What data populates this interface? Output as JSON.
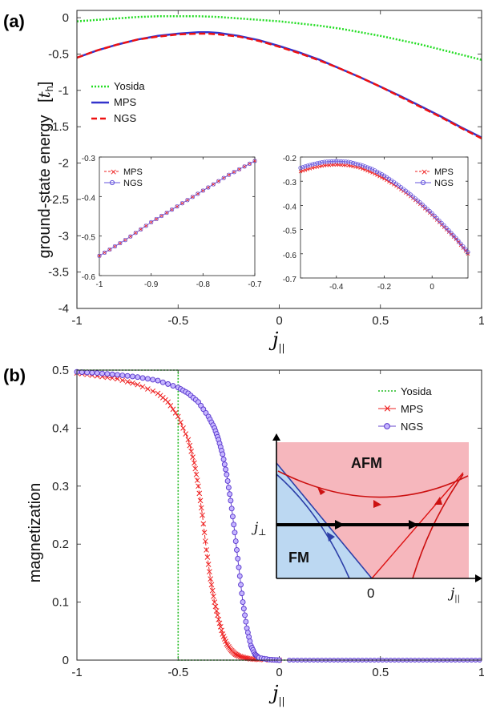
{
  "chart_data": [
    {
      "type": "line",
      "panel_label": "(a)",
      "ylabel": "ground-state energy",
      "yunit_prefix": "[",
      "yunit_symbol": "t",
      "yunit_sub": "h",
      "yunit_suffix": "]",
      "xlabel_symbol": "j",
      "xlabel_sub": "||",
      "xlim": [
        -1,
        1
      ],
      "ylim": [
        -4,
        0.1
      ],
      "xticks": [
        "-1",
        "-0.5",
        "0",
        "0.5",
        "1"
      ],
      "yticks": [
        "0",
        "-0.5",
        "-1",
        "-1.5",
        "-2",
        "-2.5",
        "-3",
        "-3.5",
        "-4"
      ],
      "legend": [
        "Yosida",
        "MPS",
        "NGS"
      ],
      "colors": {
        "Yosida": "#22dd22",
        "MPS": "#3333cc",
        "NGS": "#ee1111"
      },
      "x": [
        -1,
        -0.9,
        -0.8,
        -0.7,
        -0.6,
        -0.5,
        -0.4,
        -0.35,
        -0.3,
        -0.2,
        -0.1,
        0,
        0.1,
        0.2,
        0.3,
        0.4,
        0.5,
        0.6,
        0.7,
        0.8,
        0.9,
        1
      ],
      "series": [
        {
          "name": "Yosida",
          "values": [
            -0.05,
            -0.03,
            -0.01,
            0.01,
            0.02,
            0.02,
            0.02,
            0.015,
            0.01,
            -0.01,
            -0.03,
            -0.05,
            -0.08,
            -0.11,
            -0.15,
            -0.2,
            -0.25,
            -0.31,
            -0.37,
            -0.44,
            -0.51,
            -0.58
          ]
        },
        {
          "name": "MPS",
          "values": [
            -0.55,
            -0.45,
            -0.37,
            -0.3,
            -0.25,
            -0.22,
            -0.2,
            -0.2,
            -0.21,
            -0.25,
            -0.31,
            -0.39,
            -0.48,
            -0.58,
            -0.7,
            -0.82,
            -0.95,
            -1.08,
            -1.22,
            -1.36,
            -1.51,
            -1.65
          ]
        },
        {
          "name": "NGS",
          "values": [
            -0.55,
            -0.45,
            -0.37,
            -0.3,
            -0.26,
            -0.23,
            -0.22,
            -0.22,
            -0.23,
            -0.26,
            -0.32,
            -0.4,
            -0.49,
            -0.59,
            -0.7,
            -0.82,
            -0.95,
            -1.09,
            -1.23,
            -1.37,
            -1.52,
            -1.66
          ]
        }
      ],
      "insets": [
        {
          "xlim": [
            -1,
            -0.7
          ],
          "ylim": [
            -0.6,
            -0.3
          ],
          "xticks": [
            "-1",
            "-0.9",
            "-0.8",
            "-0.7"
          ],
          "yticks": [
            "-0.3",
            "-0.4",
            "-0.5",
            "-0.6"
          ],
          "legend": [
            "MPS",
            "NGS"
          ],
          "x": [
            -1,
            -0.95,
            -0.9,
            -0.85,
            -0.8,
            -0.75,
            -0.7
          ],
          "series": [
            {
              "name": "MPS",
              "values": [
                -0.55,
                -0.51,
                -0.465,
                -0.425,
                -0.385,
                -0.345,
                -0.31
              ]
            },
            {
              "name": "NGS",
              "values": [
                -0.55,
                -0.51,
                -0.465,
                -0.425,
                -0.385,
                -0.345,
                -0.31
              ]
            }
          ]
        },
        {
          "xlim": [
            -0.55,
            0.15
          ],
          "ylim": [
            -0.7,
            -0.2
          ],
          "xticks": [
            "-0.4",
            "-0.2",
            "0"
          ],
          "yticks": [
            "-0.2",
            "-0.3",
            "-0.4",
            "-0.5",
            "-0.6",
            "-0.7"
          ],
          "legend": [
            "MPS",
            "NGS"
          ],
          "x": [
            -0.55,
            -0.5,
            -0.45,
            -0.4,
            -0.35,
            -0.3,
            -0.25,
            -0.2,
            -0.15,
            -0.1,
            -0.05,
            0,
            0.05,
            0.1,
            0.15
          ],
          "series": [
            {
              "name": "MPS",
              "values": [
                -0.26,
                -0.245,
                -0.235,
                -0.232,
                -0.235,
                -0.245,
                -0.265,
                -0.29,
                -0.32,
                -0.355,
                -0.395,
                -0.44,
                -0.49,
                -0.54,
                -0.6
              ]
            },
            {
              "name": "NGS",
              "values": [
                -0.245,
                -0.23,
                -0.22,
                -0.217,
                -0.22,
                -0.232,
                -0.25,
                -0.277,
                -0.31,
                -0.347,
                -0.388,
                -0.433,
                -0.483,
                -0.535,
                -0.593
              ]
            }
          ]
        }
      ]
    },
    {
      "type": "line",
      "panel_label": "(b)",
      "ylabel": "magnetization",
      "xlabel_symbol": "j",
      "xlabel_sub": "||",
      "xlim": [
        -1,
        1
      ],
      "ylim": [
        0,
        0.5
      ],
      "xticks": [
        "-1",
        "-0.5",
        "0",
        "0.5",
        "1"
      ],
      "yticks": [
        "0.5",
        "0.4",
        "0.3",
        "0.2",
        "0.1",
        "0"
      ],
      "legend": [
        "Yosida",
        "MPS",
        "NGS"
      ],
      "colors": {
        "Yosida": "#22bb22",
        "MPS": "#ee2222",
        "NGS": "#6644cc"
      },
      "series": [
        {
          "name": "Yosida",
          "x": [
            -1,
            -0.5,
            -0.5,
            1
          ],
          "values": [
            0.5,
            0.5,
            0,
            0
          ]
        },
        {
          "name": "MPS",
          "x": [
            -1,
            -0.9,
            -0.8,
            -0.7,
            -0.6,
            -0.55,
            -0.5,
            -0.45,
            -0.42,
            -0.4,
            -0.38,
            -0.36,
            -0.34,
            -0.32,
            -0.3,
            -0.28,
            -0.26,
            -0.24,
            -0.22,
            -0.2,
            -0.17,
            -0.14,
            -0.1,
            0,
            0.5,
            1
          ],
          "values": [
            0.495,
            0.49,
            0.485,
            0.475,
            0.46,
            0.445,
            0.42,
            0.38,
            0.34,
            0.3,
            0.25,
            0.19,
            0.14,
            0.1,
            0.07,
            0.045,
            0.028,
            0.018,
            0.011,
            0.007,
            0.004,
            0.002,
            0.001,
            0,
            0,
            0
          ]
        },
        {
          "name": "NGS",
          "x": [
            -1,
            -0.9,
            -0.8,
            -0.7,
            -0.6,
            -0.5,
            -0.45,
            -0.4,
            -0.35,
            -0.32,
            -0.3,
            -0.28,
            -0.26,
            -0.24,
            -0.22,
            -0.2,
            -0.18,
            -0.16,
            -0.14,
            -0.12,
            -0.1,
            -0.05,
            0,
            0.5,
            1
          ],
          "values": [
            0.497,
            0.495,
            0.492,
            0.488,
            0.482,
            0.47,
            0.46,
            0.445,
            0.42,
            0.4,
            0.38,
            0.355,
            0.32,
            0.275,
            0.22,
            0.16,
            0.1,
            0.055,
            0.025,
            0.01,
            0.004,
            0.001,
            0,
            0,
            0
          ]
        }
      ],
      "inset": {
        "type": "diagram",
        "xlabel_symbol": "j",
        "xlabel_sub": "||",
        "ylabel_symbol": "j",
        "ylabel_sub": "⊥",
        "origin_label": "0",
        "regions": [
          "AFM",
          "FM"
        ],
        "region_colors": {
          "AFM": "#f6b7bd",
          "FM": "#bcd8f2"
        }
      }
    }
  ]
}
